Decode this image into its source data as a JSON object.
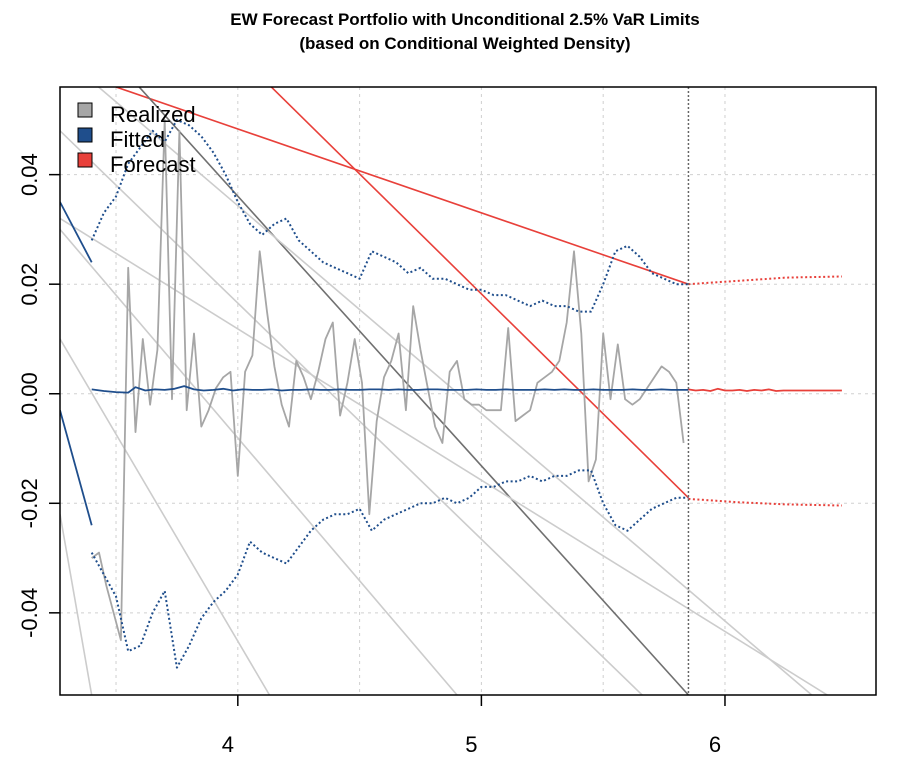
{
  "chart_data": {
    "type": "line",
    "title": "EW Forecast Portfolio with Unconditional 2.5% VaR Limits",
    "subtitle": "(based on Conditional Weighted Density)",
    "xlabel": "",
    "ylabel": "",
    "xlim": [
      3.27,
      6.62
    ],
    "ylim": [
      -0.055,
      0.056
    ],
    "x_ticks": [
      4,
      5,
      6
    ],
    "x_tick_labels": [
      "4",
      "5",
      "6"
    ],
    "y_ticks": [
      -0.04,
      -0.02,
      0.0,
      0.02,
      0.04
    ],
    "y_tick_labels": [
      "-0.04",
      "-0.02",
      "0.00",
      "0.02",
      "0.04"
    ],
    "grid": true,
    "forecast_origin_x": 5.85,
    "legend": {
      "position": "top-left",
      "entries": [
        {
          "label": "Realized",
          "color": "#a6a6a6"
        },
        {
          "label": "Fitted",
          "color": "#1f4e8c"
        },
        {
          "label": "Forecast",
          "color": "#e8403a"
        }
      ]
    },
    "colors": {
      "realized": "#a6a6a6",
      "fitted": "#1f4e8c",
      "forecast": "#e8403a",
      "guide_light": "#cccccc",
      "guide_dark": "#707070",
      "grid": "#d0d0d0",
      "origin": "#666666"
    },
    "series": [
      {
        "name": "Realized",
        "style": "solid",
        "x": [
          3.4,
          3.43,
          3.46,
          3.49,
          3.52,
          3.55,
          3.58,
          3.61,
          3.64,
          3.67,
          3.7,
          3.73,
          3.76,
          3.79,
          3.82,
          3.85,
          3.88,
          3.91,
          3.94,
          3.97,
          4.0,
          4.03,
          4.06,
          4.09,
          4.12,
          4.15,
          4.18,
          4.21,
          4.24,
          4.27,
          4.3,
          4.33,
          4.36,
          4.39,
          4.42,
          4.45,
          4.48,
          4.51,
          4.54,
          4.57,
          4.6,
          4.63,
          4.66,
          4.69,
          4.72,
          4.75,
          4.78,
          4.81,
          4.84,
          4.87,
          4.9,
          4.93,
          4.96,
          4.99,
          5.02,
          5.05,
          5.08,
          5.11,
          5.14,
          5.17,
          5.2,
          5.23,
          5.26,
          5.29,
          5.32,
          5.35,
          5.38,
          5.41,
          5.44,
          5.47,
          5.5,
          5.53,
          5.56,
          5.59,
          5.62,
          5.65,
          5.68,
          5.71,
          5.74,
          5.77,
          5.8,
          5.83
        ],
        "y": [
          -0.03,
          -0.029,
          -0.035,
          -0.04,
          -0.045,
          0.023,
          -0.007,
          0.01,
          -0.002,
          0.008,
          0.05,
          -0.001,
          0.048,
          -0.003,
          0.011,
          -0.006,
          -0.003,
          0.001,
          0.003,
          0.004,
          -0.015,
          0.004,
          0.007,
          0.026,
          0.015,
          0.005,
          -0.002,
          -0.006,
          0.006,
          0.003,
          -0.001,
          0.004,
          0.01,
          0.013,
          -0.004,
          0.002,
          0.01,
          0.002,
          -0.022,
          -0.005,
          0.003,
          0.006,
          0.011,
          -0.003,
          0.016,
          0.008,
          0.001,
          -0.006,
          -0.009,
          0.004,
          0.006,
          -0.001,
          -0.002,
          -0.002,
          -0.003,
          -0.003,
          -0.003,
          0.012,
          -0.005,
          -0.004,
          -0.003,
          0.002,
          0.003,
          0.004,
          0.006,
          0.013,
          0.026,
          0.011,
          -0.016,
          -0.012,
          0.011,
          -0.001,
          0.009,
          -0.001,
          -0.002,
          -0.001,
          0.001,
          0.003,
          0.005,
          0.004,
          0.002,
          -0.009
        ]
      },
      {
        "name": "Fitted",
        "style": "solid",
        "x": [
          3.4,
          3.45,
          3.5,
          3.55,
          3.58,
          3.62,
          3.66,
          3.7,
          3.74,
          3.78,
          3.82,
          3.86,
          3.9,
          3.94,
          3.98,
          4.02,
          4.06,
          4.1,
          4.14,
          4.18,
          4.22,
          4.26,
          4.3,
          4.34,
          4.38,
          4.42,
          4.46,
          4.5,
          4.54,
          4.58,
          4.62,
          4.66,
          4.7,
          4.74,
          4.78,
          4.82,
          4.86,
          4.9,
          4.94,
          4.98,
          5.02,
          5.06,
          5.1,
          5.14,
          5.18,
          5.22,
          5.26,
          5.3,
          5.34,
          5.38,
          5.42,
          5.46,
          5.5,
          5.54,
          5.58,
          5.62,
          5.66,
          5.7,
          5.74,
          5.78,
          5.82,
          5.85
        ],
        "y": [
          0.0008,
          0.0005,
          0.0003,
          0.0002,
          0.0012,
          0.0006,
          0.0008,
          0.0007,
          0.0009,
          0.0014,
          0.0008,
          0.0006,
          0.0007,
          0.0009,
          0.0006,
          0.0008,
          0.0007,
          0.0007,
          0.0008,
          0.0006,
          0.0007,
          0.0007,
          0.0008,
          0.0007,
          0.0007,
          0.0008,
          0.0007,
          0.0007,
          0.0008,
          0.0008,
          0.0007,
          0.0008,
          0.0007,
          0.0007,
          0.0008,
          0.0008,
          0.0007,
          0.0007,
          0.0007,
          0.0008,
          0.0007,
          0.0007,
          0.0008,
          0.0007,
          0.0007,
          0.0007,
          0.0008,
          0.0007,
          0.0008,
          0.0007,
          0.0007,
          0.0008,
          0.0007,
          0.0007,
          0.0007,
          0.0008,
          0.0007,
          0.0007,
          0.0008,
          0.0007,
          0.0007,
          0.0007
        ]
      },
      {
        "name": "Fitted VaR upper",
        "style": "dotted",
        "x": [
          3.4,
          3.45,
          3.5,
          3.55,
          3.6,
          3.65,
          3.7,
          3.75,
          3.8,
          3.85,
          3.9,
          3.95,
          4.0,
          4.05,
          4.1,
          4.15,
          4.2,
          4.25,
          4.3,
          4.35,
          4.4,
          4.45,
          4.5,
          4.55,
          4.6,
          4.65,
          4.7,
          4.75,
          4.8,
          4.85,
          4.9,
          4.95,
          5.0,
          5.05,
          5.1,
          5.15,
          5.2,
          5.25,
          5.3,
          5.35,
          5.4,
          5.45,
          5.5,
          5.55,
          5.6,
          5.65,
          5.7,
          5.75,
          5.8,
          5.85
        ],
        "y": [
          0.028,
          0.033,
          0.036,
          0.042,
          0.045,
          0.048,
          0.046,
          0.05,
          0.049,
          0.047,
          0.044,
          0.04,
          0.035,
          0.031,
          0.029,
          0.031,
          0.032,
          0.028,
          0.026,
          0.024,
          0.023,
          0.022,
          0.021,
          0.026,
          0.025,
          0.024,
          0.022,
          0.023,
          0.021,
          0.021,
          0.02,
          0.019,
          0.019,
          0.018,
          0.018,
          0.017,
          0.016,
          0.017,
          0.016,
          0.016,
          0.015,
          0.015,
          0.02,
          0.026,
          0.027,
          0.025,
          0.022,
          0.021,
          0.02,
          0.02
        ]
      },
      {
        "name": "Fitted VaR lower",
        "style": "dotted",
        "x": [
          3.4,
          3.45,
          3.5,
          3.55,
          3.6,
          3.65,
          3.7,
          3.75,
          3.8,
          3.85,
          3.9,
          3.95,
          4.0,
          4.05,
          4.1,
          4.15,
          4.2,
          4.25,
          4.3,
          4.35,
          4.4,
          4.45,
          4.5,
          4.55,
          4.6,
          4.65,
          4.7,
          4.75,
          4.8,
          4.85,
          4.9,
          4.95,
          5.0,
          5.05,
          5.1,
          5.15,
          5.2,
          5.25,
          5.3,
          5.35,
          5.4,
          5.45,
          5.5,
          5.55,
          5.6,
          5.65,
          5.7,
          5.75,
          5.8,
          5.85
        ],
        "y": [
          -0.029,
          -0.033,
          -0.037,
          -0.047,
          -0.046,
          -0.04,
          -0.036,
          -0.05,
          -0.046,
          -0.041,
          -0.038,
          -0.036,
          -0.033,
          -0.027,
          -0.029,
          -0.03,
          -0.031,
          -0.028,
          -0.025,
          -0.023,
          -0.022,
          -0.022,
          -0.021,
          -0.025,
          -0.023,
          -0.022,
          -0.021,
          -0.02,
          -0.02,
          -0.019,
          -0.02,
          -0.019,
          -0.017,
          -0.017,
          -0.016,
          -0.016,
          -0.015,
          -0.016,
          -0.015,
          -0.015,
          -0.014,
          -0.014,
          -0.02,
          -0.024,
          -0.025,
          -0.023,
          -0.021,
          -0.02,
          -0.019,
          -0.019
        ]
      },
      {
        "name": "Forecast",
        "style": "solid",
        "x": [
          5.85,
          5.88,
          5.91,
          5.94,
          5.97,
          6.0,
          6.03,
          6.06,
          6.09,
          6.12,
          6.15,
          6.18,
          6.21,
          6.24,
          6.27,
          6.3,
          6.33,
          6.36,
          6.39,
          6.42,
          6.45,
          6.48
        ],
        "y": [
          0.0008,
          0.0006,
          0.0007,
          0.0005,
          0.0009,
          0.0006,
          0.0006,
          0.0007,
          0.0005,
          0.0007,
          0.0006,
          0.0008,
          0.0005,
          0.0006,
          0.0006,
          0.0006,
          0.0006,
          0.0006,
          0.0006,
          0.0006,
          0.0006,
          0.0006
        ]
      },
      {
        "name": "Forecast VaR upper",
        "style": "dotted",
        "x": [
          5.85,
          5.95,
          6.05,
          6.15,
          6.25,
          6.35,
          6.48
        ],
        "y": [
          0.02,
          0.0203,
          0.0206,
          0.0209,
          0.0212,
          0.0213,
          0.0214
        ]
      },
      {
        "name": "Forecast VaR lower",
        "style": "dotted",
        "x": [
          5.85,
          5.95,
          6.05,
          6.15,
          6.25,
          6.35,
          6.48
        ],
        "y": [
          -0.0192,
          -0.0195,
          -0.0198,
          -0.02,
          -0.0202,
          -0.0203,
          -0.0204
        ]
      },
      {
        "name": "Fitted start upper",
        "style": "solid",
        "x": [
          3.27,
          3.4
        ],
        "y": [
          0.035,
          0.024
        ]
      },
      {
        "name": "Fitted start lower",
        "style": "solid",
        "x": [
          3.27,
          3.4
        ],
        "y": [
          -0.003,
          -0.024
        ]
      }
    ],
    "guide_lines": [
      {
        "tone": "forecast",
        "x": [
          3.5,
          5.85
        ],
        "y": [
          0.056,
          0.02
        ]
      },
      {
        "tone": "forecast",
        "x": [
          3.27,
          5.85
        ],
        "y": [
          0.094,
          -0.019
        ]
      },
      {
        "tone": "dark",
        "x": [
          3.27,
          5.85
        ],
        "y": [
          0.072,
          -0.055
        ]
      },
      {
        "tone": "light",
        "x": [
          3.27,
          6.62
        ],
        "y": [
          0.062,
          -0.065
        ]
      },
      {
        "tone": "light",
        "x": [
          3.27,
          6.42
        ],
        "y": [
          0.032,
          -0.055
        ]
      },
      {
        "tone": "light",
        "x": [
          3.27,
          5.66
        ],
        "y": [
          0.048,
          -0.055
        ]
      },
      {
        "tone": "light",
        "x": [
          3.27,
          4.9
        ],
        "y": [
          0.03,
          -0.055
        ]
      },
      {
        "tone": "light",
        "x": [
          3.27,
          4.13
        ],
        "y": [
          0.01,
          -0.055
        ]
      },
      {
        "tone": "light",
        "x": [
          3.27,
          3.4
        ],
        "y": [
          -0.022,
          -0.055
        ]
      }
    ]
  }
}
